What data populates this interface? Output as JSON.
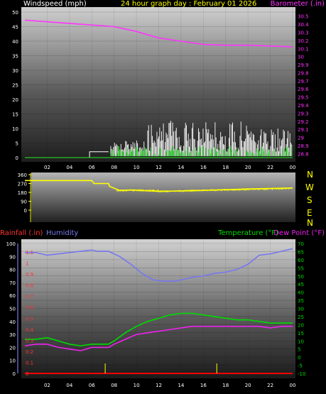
{
  "chart_data": [
    {
      "type": "line",
      "title": "24 hour graph day : February 01 2026",
      "left_label": "Windspeed (mph)",
      "right_label": "Barometer (.in)",
      "x_ticks": [
        "02",
        "04",
        "06",
        "08",
        "10",
        "12",
        "14",
        "16",
        "18",
        "20",
        "22",
        "00"
      ],
      "y_left_ticks": [
        0,
        5,
        10,
        15,
        20,
        25,
        30,
        35,
        40,
        45,
        50
      ],
      "y_left_range": [
        0,
        50
      ],
      "y_right_ticks": [
        "28.8",
        "28.9",
        "29",
        "29.1",
        "29.2",
        "29.3",
        "29.4",
        "29.5",
        "29.6",
        "29.7",
        "29.8",
        "29.9",
        "30",
        "30.1",
        "30.2",
        "30.3",
        "30.4",
        "30.5"
      ],
      "y_right_range": [
        28.75,
        30.55
      ],
      "colors": {
        "windspeed": "#ffffff",
        "average": "#00ff00",
        "barometer": "#ff33ff",
        "title": "#ffff00"
      },
      "series": [
        {
          "name": "Barometer",
          "axis": "right",
          "color": "#ff33ff",
          "x_hours": [
            0,
            2,
            4,
            6,
            8,
            10,
            12,
            14,
            16,
            18,
            20,
            22,
            24
          ],
          "values": [
            30.45,
            30.43,
            30.41,
            30.39,
            30.37,
            30.31,
            30.23,
            30.19,
            30.15,
            30.14,
            30.14,
            30.13,
            30.12
          ]
        }
      ]
    },
    {
      "type": "line",
      "y_ticks": [
        0,
        90,
        180,
        270,
        360
      ],
      "y_range": [
        0,
        360
      ],
      "compass": [
        "N",
        "W",
        "S",
        "E",
        "N"
      ],
      "colors": {
        "direction": "#ffff00"
      },
      "series": [
        {
          "name": "Wind direction",
          "color": "#ffff00",
          "x_hours": [
            0,
            6,
            6.2,
            7.5,
            7.6,
            8.5,
            9.5,
            12,
            16,
            20,
            24
          ],
          "values": [
            300,
            300,
            270,
            270,
            240,
            200,
            205,
            190,
            200,
            215,
            225
          ]
        }
      ]
    },
    {
      "type": "line",
      "left_label": "Rainfall (.in)",
      "humidity_label": "Humidity",
      "temperature_label": "Temperature (°F)",
      "dewpoint_label": "Dew Point (°F)",
      "x_ticks": [
        "02",
        "04",
        "06",
        "08",
        "10",
        "12",
        "14",
        "16",
        "18",
        "20",
        "22",
        "00"
      ],
      "humidity_ticks": [
        0,
        10,
        20,
        30,
        40,
        50,
        60,
        70,
        80,
        90,
        100
      ],
      "humidity_range": [
        0,
        100
      ],
      "rain_ticks": [
        "0",
        "0.1",
        "0.2",
        "0.3",
        "0.4",
        "0.5",
        "0.6",
        "0.7",
        "0.8",
        "0.9",
        "1",
        "1.1"
      ],
      "rain_range": [
        0,
        1.1
      ],
      "temp_ticks": [
        -10,
        -5,
        0,
        5,
        10,
        15,
        20,
        25,
        30,
        35,
        40,
        45,
        50,
        55,
        60,
        65,
        70
      ],
      "temp_range": [
        -10,
        70
      ],
      "colors": {
        "humidity": "#7777ee",
        "temperature": "#00dd00",
        "dewpoint": "#ee22ee",
        "rain": "#ff0000",
        "rain_ticks": "#ffff00"
      },
      "series": [
        {
          "name": "Humidity",
          "axis": "humidity",
          "color": "#7777ee",
          "x_hours": [
            0,
            1,
            2,
            4,
            6,
            6.5,
            7.5,
            8.5,
            9.5,
            10.5,
            11.5,
            12.5,
            13.5,
            15,
            16,
            17,
            18,
            19,
            20,
            21,
            22,
            23,
            24
          ],
          "values": [
            93,
            93,
            91,
            93,
            95,
            94,
            94,
            90,
            84,
            77,
            72,
            71,
            71,
            74,
            75,
            77,
            78,
            80,
            84,
            91,
            92,
            94,
            96
          ]
        },
        {
          "name": "Temperature",
          "axis": "temperature",
          "color": "#00dd00",
          "x_hours": [
            0,
            1,
            2,
            3,
            4,
            5,
            6,
            7,
            7.5,
            8,
            9,
            10,
            11,
            12,
            13,
            14,
            15,
            16,
            17,
            18,
            19,
            20,
            21,
            22,
            23,
            24
          ],
          "values": [
            11,
            11,
            12,
            10,
            8,
            7,
            8,
            8,
            8,
            10,
            15,
            19,
            22,
            24,
            26,
            27,
            27,
            26,
            25,
            24,
            23,
            23,
            22,
            21,
            21,
            21
          ]
        },
        {
          "name": "Dew Point",
          "axis": "temperature",
          "color": "#ee22ee",
          "x_hours": [
            0,
            1,
            2,
            3,
            4,
            5,
            6,
            7,
            7.5,
            8,
            9,
            10,
            11,
            12,
            13,
            14,
            15,
            16,
            17,
            18,
            19,
            20,
            21,
            22,
            23,
            24
          ],
          "values": [
            7,
            8,
            8,
            6,
            5,
            4,
            6,
            6,
            6,
            8,
            11,
            14,
            15,
            16,
            17,
            18,
            19,
            19,
            19,
            19,
            19,
            19,
            19,
            18,
            19,
            19
          ]
        },
        {
          "name": "Rainfall",
          "axis": "rain",
          "color": "#ff0000",
          "x_hours": [
            0,
            24
          ],
          "values": [
            0,
            0
          ]
        }
      ]
    }
  ]
}
